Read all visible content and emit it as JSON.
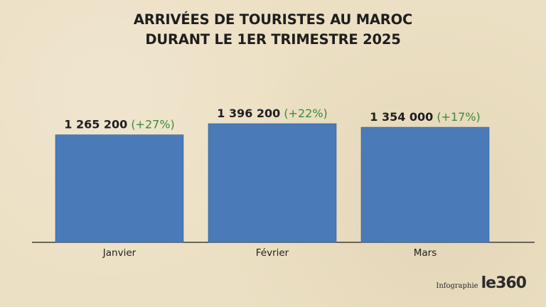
{
  "title_line1": "ARRIVÉES DE TOURISTES AU MAROC",
  "title_line2": "DURANT LE 1ER TRIMESTRE 2025",
  "credit": {
    "label": "Infographie",
    "logo": "le360"
  },
  "colors": {
    "bar": "#4a7ab8",
    "growth": "#3c8a3c",
    "value": "#1f1f1f",
    "axis": "#1f1f1f",
    "background": "#ece0c4"
  },
  "chart_data": {
    "type": "bar",
    "title": "ARRIVÉES DE TOURISTES AU MAROC DURANT LE 1ER TRIMESTRE 2025",
    "categories": [
      "Janvier",
      "Février",
      "Mars"
    ],
    "values": [
      1265200,
      1396200,
      1354000
    ],
    "value_labels": [
      "1 265 200",
      "1 396 200",
      "1 354 000"
    ],
    "growth_labels": [
      "(+27%)",
      "(+22%)",
      "(+17%)"
    ],
    "ylim": [
      0,
      1396200
    ],
    "grid": false,
    "legend": "none"
  }
}
